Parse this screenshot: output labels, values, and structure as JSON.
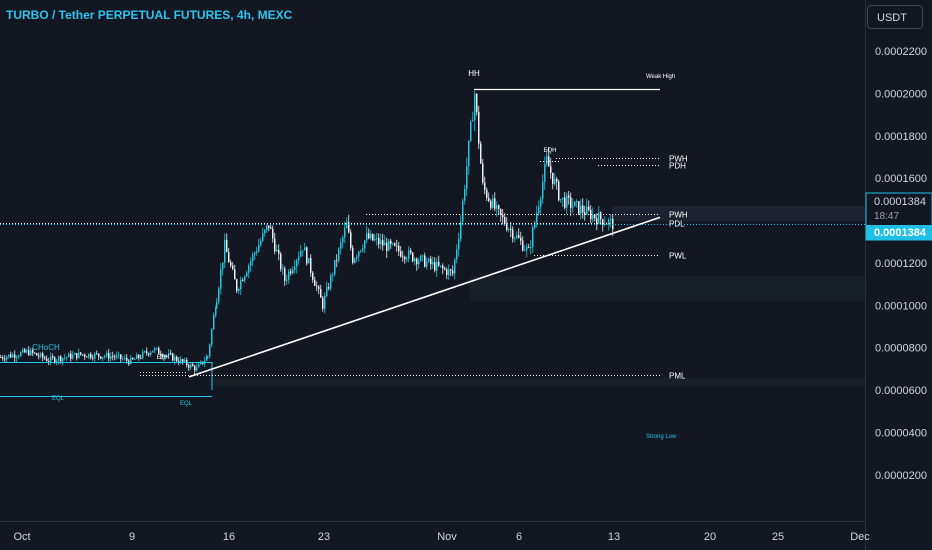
{
  "header": {
    "title": "TURBO / Tether PERPETUAL FUTURES, 4h, MEXC"
  },
  "toolbar": {
    "currency_label": "USDT"
  },
  "colors": {
    "background": "#131722",
    "accent": "#22c7e8",
    "title": "#2ec4f0",
    "axis_text": "#d1d4dc",
    "ref_line": "#ffffff",
    "price_tag": "#1fbfe6"
  },
  "chart_data": {
    "type": "candlestick",
    "title": "TURBO / Tether PERPETUAL FUTURES, 4h, MEXC",
    "y_unit": "USDT",
    "ylim": [
      1e-05,
      0.00023
    ],
    "y_ticks": [
      "0.0000200",
      "0.0000400",
      "0.0000600",
      "0.0000800",
      "0.0001000",
      "0.0001200",
      "0.0001400",
      "0.0001600",
      "0.0001800",
      "0.0002000",
      "0.0002200"
    ],
    "x_ticks": [
      "Oct",
      "9",
      "16",
      "23",
      "Nov",
      "6",
      "13",
      "20",
      "25",
      "Dec"
    ],
    "anchors": [
      {
        "x": "Oct",
        "y": 7.55e-05
      },
      {
        "x": "Oct",
        "y": 7.8e-05
      },
      {
        "x": "Oct",
        "y": 7.42e-05
      },
      {
        "x": "Oct",
        "y": 7.68e-05
      },
      {
        "x": "9",
        "y": 7.6e-05
      },
      {
        "x": "9",
        "y": 7.35e-05
      },
      {
        "x": "9",
        "y": 7.92e-05
      },
      {
        "x": "9",
        "y": 7.45e-05
      },
      {
        "x": "16",
        "y": 7e-05
      },
      {
        "x": "16",
        "y": 7.6e-05
      },
      {
        "x": "16",
        "y": 0.000104
      },
      {
        "x": "16",
        "y": 0.000128
      },
      {
        "x": "16",
        "y": 0.000108
      },
      {
        "x": "16",
        "y": 0.000138
      },
      {
        "x": "23",
        "y": 0.000112
      },
      {
        "x": "23",
        "y": 0.000128
      },
      {
        "x": "23",
        "y": 0.0001
      },
      {
        "x": "23",
        "y": 0.000138
      },
      {
        "x": "23",
        "y": 0.000122
      },
      {
        "x": "23",
        "y": 0.000132
      },
      {
        "x": "Nov",
        "y": 0.000115
      },
      {
        "x": "Nov",
        "y": 0.00014
      },
      {
        "x": "Nov",
        "y": 0.0002
      },
      {
        "x": "Nov",
        "y": 0.000156
      },
      {
        "x": "6",
        "y": 0.000144
      },
      {
        "x": "6",
        "y": 0.000125
      },
      {
        "x": "6",
        "y": 0.000168
      },
      {
        "x": "6",
        "y": 0.00015
      },
      {
        "x": "13",
        "y": 0.000142
      },
      {
        "x": "13",
        "y": 0.0001384
      }
    ],
    "reference_lines": [
      {
        "label": "Weak High",
        "y": 0.0002022
      },
      {
        "label": "PWH",
        "y": 0.0001696
      },
      {
        "label": "PDH",
        "y": 0.0001664
      },
      {
        "label": "PWH",
        "y": 0.0001432
      },
      {
        "label": "PDL",
        "y": 0.0001388
      },
      {
        "label": "PWL",
        "y": 0.0001236
      },
      {
        "label": "PML",
        "y": 6.72e-05
      }
    ],
    "annotations": [
      {
        "text": "HH"
      },
      {
        "text": "Weak High"
      },
      {
        "text": "EQH"
      },
      {
        "text": "EQH"
      },
      {
        "text": "CHoCH"
      },
      {
        "text": "EQL"
      },
      {
        "text": "EQL"
      },
      {
        "text": "Strong Low"
      }
    ],
    "trendline": {
      "from": {
        "x": "9",
        "y": 6.62e-05
      },
      "to": {
        "x": "13",
        "y": 0.0001415
      }
    },
    "last_price": {
      "value": "0.0001384",
      "countdown": "18:47"
    }
  }
}
